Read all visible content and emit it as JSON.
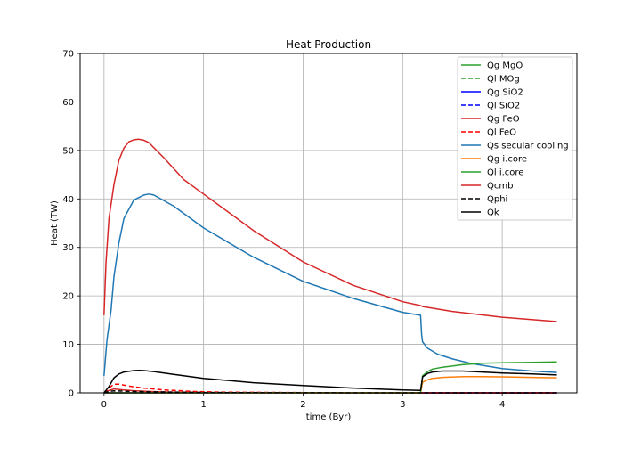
{
  "chart_data": {
    "type": "line",
    "title": "Heat Production",
    "xlabel": "time (Byr)",
    "ylabel": "Heat (TW)",
    "xlim": [
      -0.24,
      4.75
    ],
    "ylim": [
      0,
      70
    ],
    "xticks": [
      0,
      1,
      2,
      3,
      4
    ],
    "yticks": [
      0,
      10,
      20,
      30,
      40,
      50,
      60,
      70
    ],
    "grid": true,
    "legend_position": "top-right",
    "series": [
      {
        "name": "Qg MgO",
        "color": "#2ca02c",
        "dash": "solid",
        "visible_trace": false,
        "x": [
          0,
          4.55
        ],
        "y": [
          0,
          0
        ]
      },
      {
        "name": "Ql MOg",
        "color": "#2ca02c",
        "dash": "dashed",
        "visible_trace": false,
        "x": [
          0,
          4.55
        ],
        "y": [
          0,
          0
        ]
      },
      {
        "name": "Qg SiO2",
        "color": "#0000ff",
        "dash": "solid",
        "visible_trace": false,
        "x": [
          0,
          4.55
        ],
        "y": [
          0,
          0
        ]
      },
      {
        "name": "Ql SiO2",
        "color": "#0000ff",
        "dash": "dashed",
        "visible_trace": false,
        "x": [
          0,
          4.55
        ],
        "y": [
          0,
          0
        ]
      },
      {
        "name": "Qg FeO",
        "color": "#d62728",
        "dash": "solid",
        "x": [
          0,
          0.05,
          0.1,
          0.2,
          0.3,
          0.5,
          0.8,
          1.0,
          1.5,
          2.0,
          3.0,
          4.55
        ],
        "y": [
          0,
          0.5,
          0.8,
          0.6,
          0.45,
          0.25,
          0.1,
          0.05,
          0.02,
          0.01,
          0,
          0
        ]
      },
      {
        "name": "Ql FeO",
        "color": "#ff0000",
        "dash": "dashed",
        "x": [
          0,
          0.05,
          0.1,
          0.15,
          0.25,
          0.4,
          0.6,
          0.9,
          1.2,
          2.0,
          3.0,
          4.55
        ],
        "y": [
          0,
          1.0,
          1.8,
          1.8,
          1.4,
          1.0,
          0.6,
          0.3,
          0.15,
          0.05,
          0,
          0
        ]
      },
      {
        "name": "Qs secular cooling",
        "color": "#1f77b4",
        "dash": "solid",
        "x": [
          0,
          0.03,
          0.07,
          0.1,
          0.15,
          0.2,
          0.3,
          0.4,
          0.45,
          0.5,
          0.7,
          1.0,
          1.5,
          2.0,
          2.5,
          3.0,
          3.18,
          3.19,
          3.2,
          3.25,
          3.35,
          3.5,
          3.7,
          4.0,
          4.3,
          4.55
        ],
        "y": [
          3.5,
          11,
          17,
          24,
          31,
          36,
          39.8,
          40.8,
          41,
          40.8,
          38.5,
          34,
          28,
          23,
          19.5,
          16.6,
          16,
          12,
          10.5,
          9.2,
          8,
          7,
          6,
          5,
          4.5,
          4.2
        ]
      },
      {
        "name": "Qg i.core",
        "color": "#ff7f0e",
        "dash": "solid",
        "x": [
          0,
          3.18,
          3.2,
          3.25,
          3.3,
          3.4,
          3.6,
          3.8,
          4.0,
          4.3,
          4.55
        ],
        "y": [
          0,
          0,
          2.2,
          2.7,
          3.0,
          3.2,
          3.35,
          3.35,
          3.3,
          3.2,
          3.1
        ]
      },
      {
        "name": "Ql i.core",
        "color": "#2ca02c",
        "dash": "solid",
        "x": [
          0,
          3.18,
          3.2,
          3.25,
          3.3,
          3.4,
          3.6,
          3.8,
          4.0,
          4.3,
          4.55
        ],
        "y": [
          0,
          0,
          3.5,
          4.4,
          4.9,
          5.3,
          5.8,
          6.1,
          6.2,
          6.3,
          6.4
        ]
      },
      {
        "name": "Qcmb",
        "color": "#d62728",
        "dash": "solid",
        "x": [
          0,
          0.02,
          0.05,
          0.1,
          0.15,
          0.2,
          0.25,
          0.3,
          0.35,
          0.4,
          0.45,
          0.6,
          0.8,
          1.0,
          1.5,
          2.0,
          2.5,
          3.0,
          3.18,
          3.2,
          3.5,
          4.0,
          4.55
        ],
        "y": [
          16,
          27,
          36,
          43,
          48,
          50.5,
          51.8,
          52.2,
          52.3,
          52.1,
          51.6,
          48.5,
          44,
          41,
          33.5,
          27,
          22.2,
          18.8,
          18,
          17.8,
          16.8,
          15.6,
          14.7
        ]
      },
      {
        "name": "Qphi",
        "color": "#000000",
        "dash": "dashed",
        "x": [
          0,
          0.05,
          0.1,
          0.2,
          0.3,
          0.5,
          0.8,
          1.0,
          1.5,
          2.0,
          3.0,
          4.55
        ],
        "y": [
          0,
          0.3,
          0.4,
          0.35,
          0.3,
          0.2,
          0.12,
          0.08,
          0.04,
          0.02,
          0,
          0
        ]
      },
      {
        "name": "Qk",
        "color": "#000000",
        "dash": "solid",
        "x": [
          0,
          0.05,
          0.1,
          0.15,
          0.2,
          0.3,
          0.35,
          0.4,
          0.5,
          0.7,
          1.0,
          1.5,
          2.0,
          2.5,
          3.0,
          3.18,
          3.2,
          3.25,
          3.3,
          3.4,
          3.6,
          3.8,
          4.0,
          4.3,
          4.55
        ],
        "y": [
          0,
          1.3,
          3.1,
          3.9,
          4.3,
          4.6,
          4.65,
          4.6,
          4.4,
          3.8,
          3.0,
          2.1,
          1.5,
          1.0,
          0.6,
          0.5,
          3.3,
          4.0,
          4.3,
          4.5,
          4.5,
          4.3,
          4.1,
          3.9,
          3.7
        ]
      }
    ]
  }
}
